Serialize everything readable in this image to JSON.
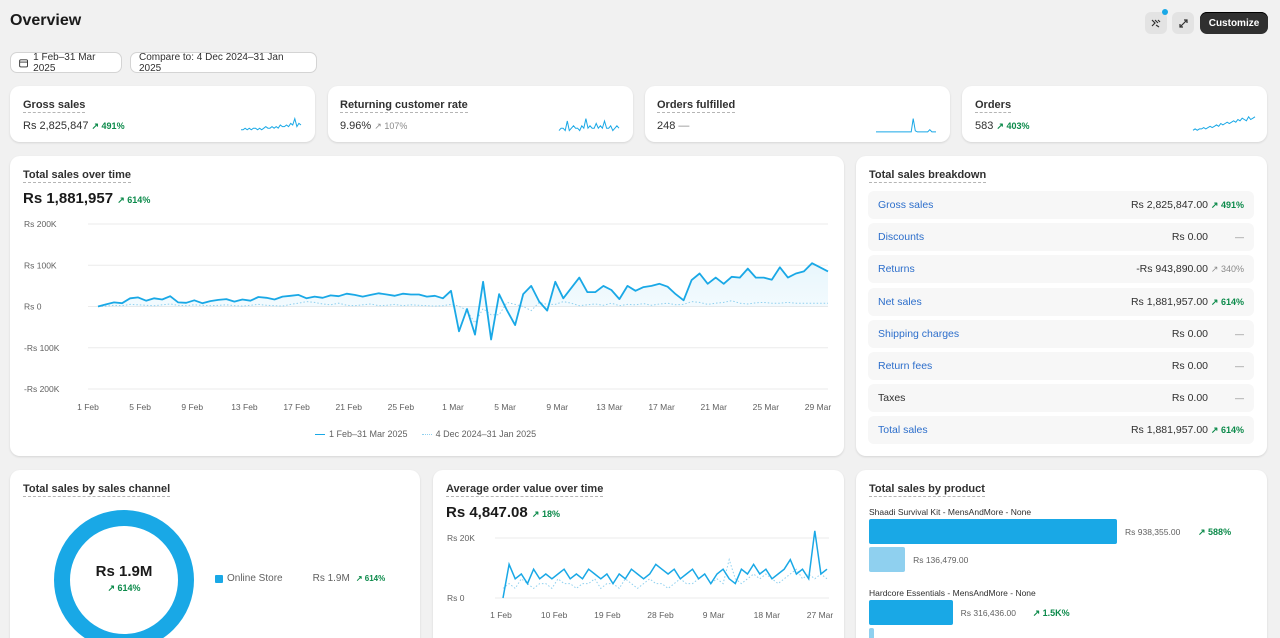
{
  "page": {
    "title": "Overview",
    "customize_label": "Customize"
  },
  "filters": {
    "date_range": "1 Feb–31 Mar 2025",
    "compare": "Compare to: 4 Dec 2024–31 Jan 2025"
  },
  "kpis": [
    {
      "title": "Gross sales",
      "value": "Rs 2,825,847",
      "change": "491%",
      "trend": "up"
    },
    {
      "title": "Returning customer rate",
      "value": "9.96%",
      "change": "107%",
      "trend": "up-neutral"
    },
    {
      "title": "Orders fulfilled",
      "value": "248",
      "change": "—",
      "trend": "none"
    },
    {
      "title": "Orders",
      "value": "583",
      "change": "403%",
      "trend": "up"
    }
  ],
  "total_sales_over_time": {
    "title": "Total sales over time",
    "value": "Rs 1,881,957",
    "change": "614%",
    "y_ticks": [
      "Rs 200K",
      "Rs 100K",
      "Rs 0",
      "-Rs 100K",
      "-Rs 200K"
    ],
    "x_ticks": [
      "1 Feb",
      "5 Feb",
      "9 Feb",
      "13 Feb",
      "17 Feb",
      "21 Feb",
      "25 Feb",
      "1 Mar",
      "5 Mar",
      "9 Mar",
      "13 Mar",
      "17 Mar",
      "21 Mar",
      "25 Mar",
      "29 Mar"
    ],
    "legend_current": "1 Feb–31 Mar 2025",
    "legend_previous": "4 Dec 2024–31 Jan 2025"
  },
  "breakdown": {
    "title": "Total sales breakdown",
    "rows": [
      {
        "label": "Gross sales",
        "value": "Rs 2,825,847.00",
        "change": "491%",
        "kind": "up"
      },
      {
        "label": "Discounts",
        "value": "Rs 0.00",
        "change": "—",
        "kind": "none"
      },
      {
        "label": "Returns",
        "value": "-Rs 943,890.00",
        "change": "340%",
        "kind": "neutral"
      },
      {
        "label": "Net sales",
        "value": "Rs 1,881,957.00",
        "change": "614%",
        "kind": "up"
      },
      {
        "label": "Shipping charges",
        "value": "Rs 0.00",
        "change": "—",
        "kind": "none"
      },
      {
        "label": "Return fees",
        "value": "Rs 0.00",
        "change": "—",
        "kind": "none"
      },
      {
        "label": "Taxes",
        "value": "Rs 0.00",
        "change": "—",
        "kind": "none"
      },
      {
        "label": "Total sales",
        "value": "Rs 1,881,957.00",
        "change": "614%",
        "kind": "up"
      }
    ]
  },
  "sales_by_channel": {
    "title": "Total sales by sales channel",
    "center_value": "Rs 1.9M",
    "center_change": "614%",
    "legend_label": "Online Store",
    "legend_value": "Rs 1.9M",
    "legend_change": "614%"
  },
  "aov": {
    "title": "Average order value over time",
    "value": "Rs 4,847.08",
    "change": "18%",
    "y_ticks": [
      "Rs 20K",
      "Rs 0"
    ],
    "x_ticks": [
      "1 Feb",
      "10 Feb",
      "19 Feb",
      "28 Feb",
      "9 Mar",
      "18 Mar",
      "27 Mar"
    ]
  },
  "by_product": {
    "title": "Total sales by product",
    "products": [
      {
        "name": "Shaadi Survival Kit - MensAndMore - None",
        "current": "Rs 938,355.00",
        "previous": "Rs 136,479.00",
        "change": "588%",
        "current_value": 938355,
        "previous_value": 136479
      },
      {
        "name": "Hardcore Essentials - MensAndMore - None",
        "current": "Rs 316,436.00",
        "previous": "",
        "change": "1.5K%",
        "current_value": 316436,
        "previous_value": 20000
      }
    ]
  },
  "colors": {
    "accent": "#19a8e6",
    "accent_light": "#8fd0ef",
    "positive": "#0b8a4a",
    "link": "#2c6ecb"
  }
}
